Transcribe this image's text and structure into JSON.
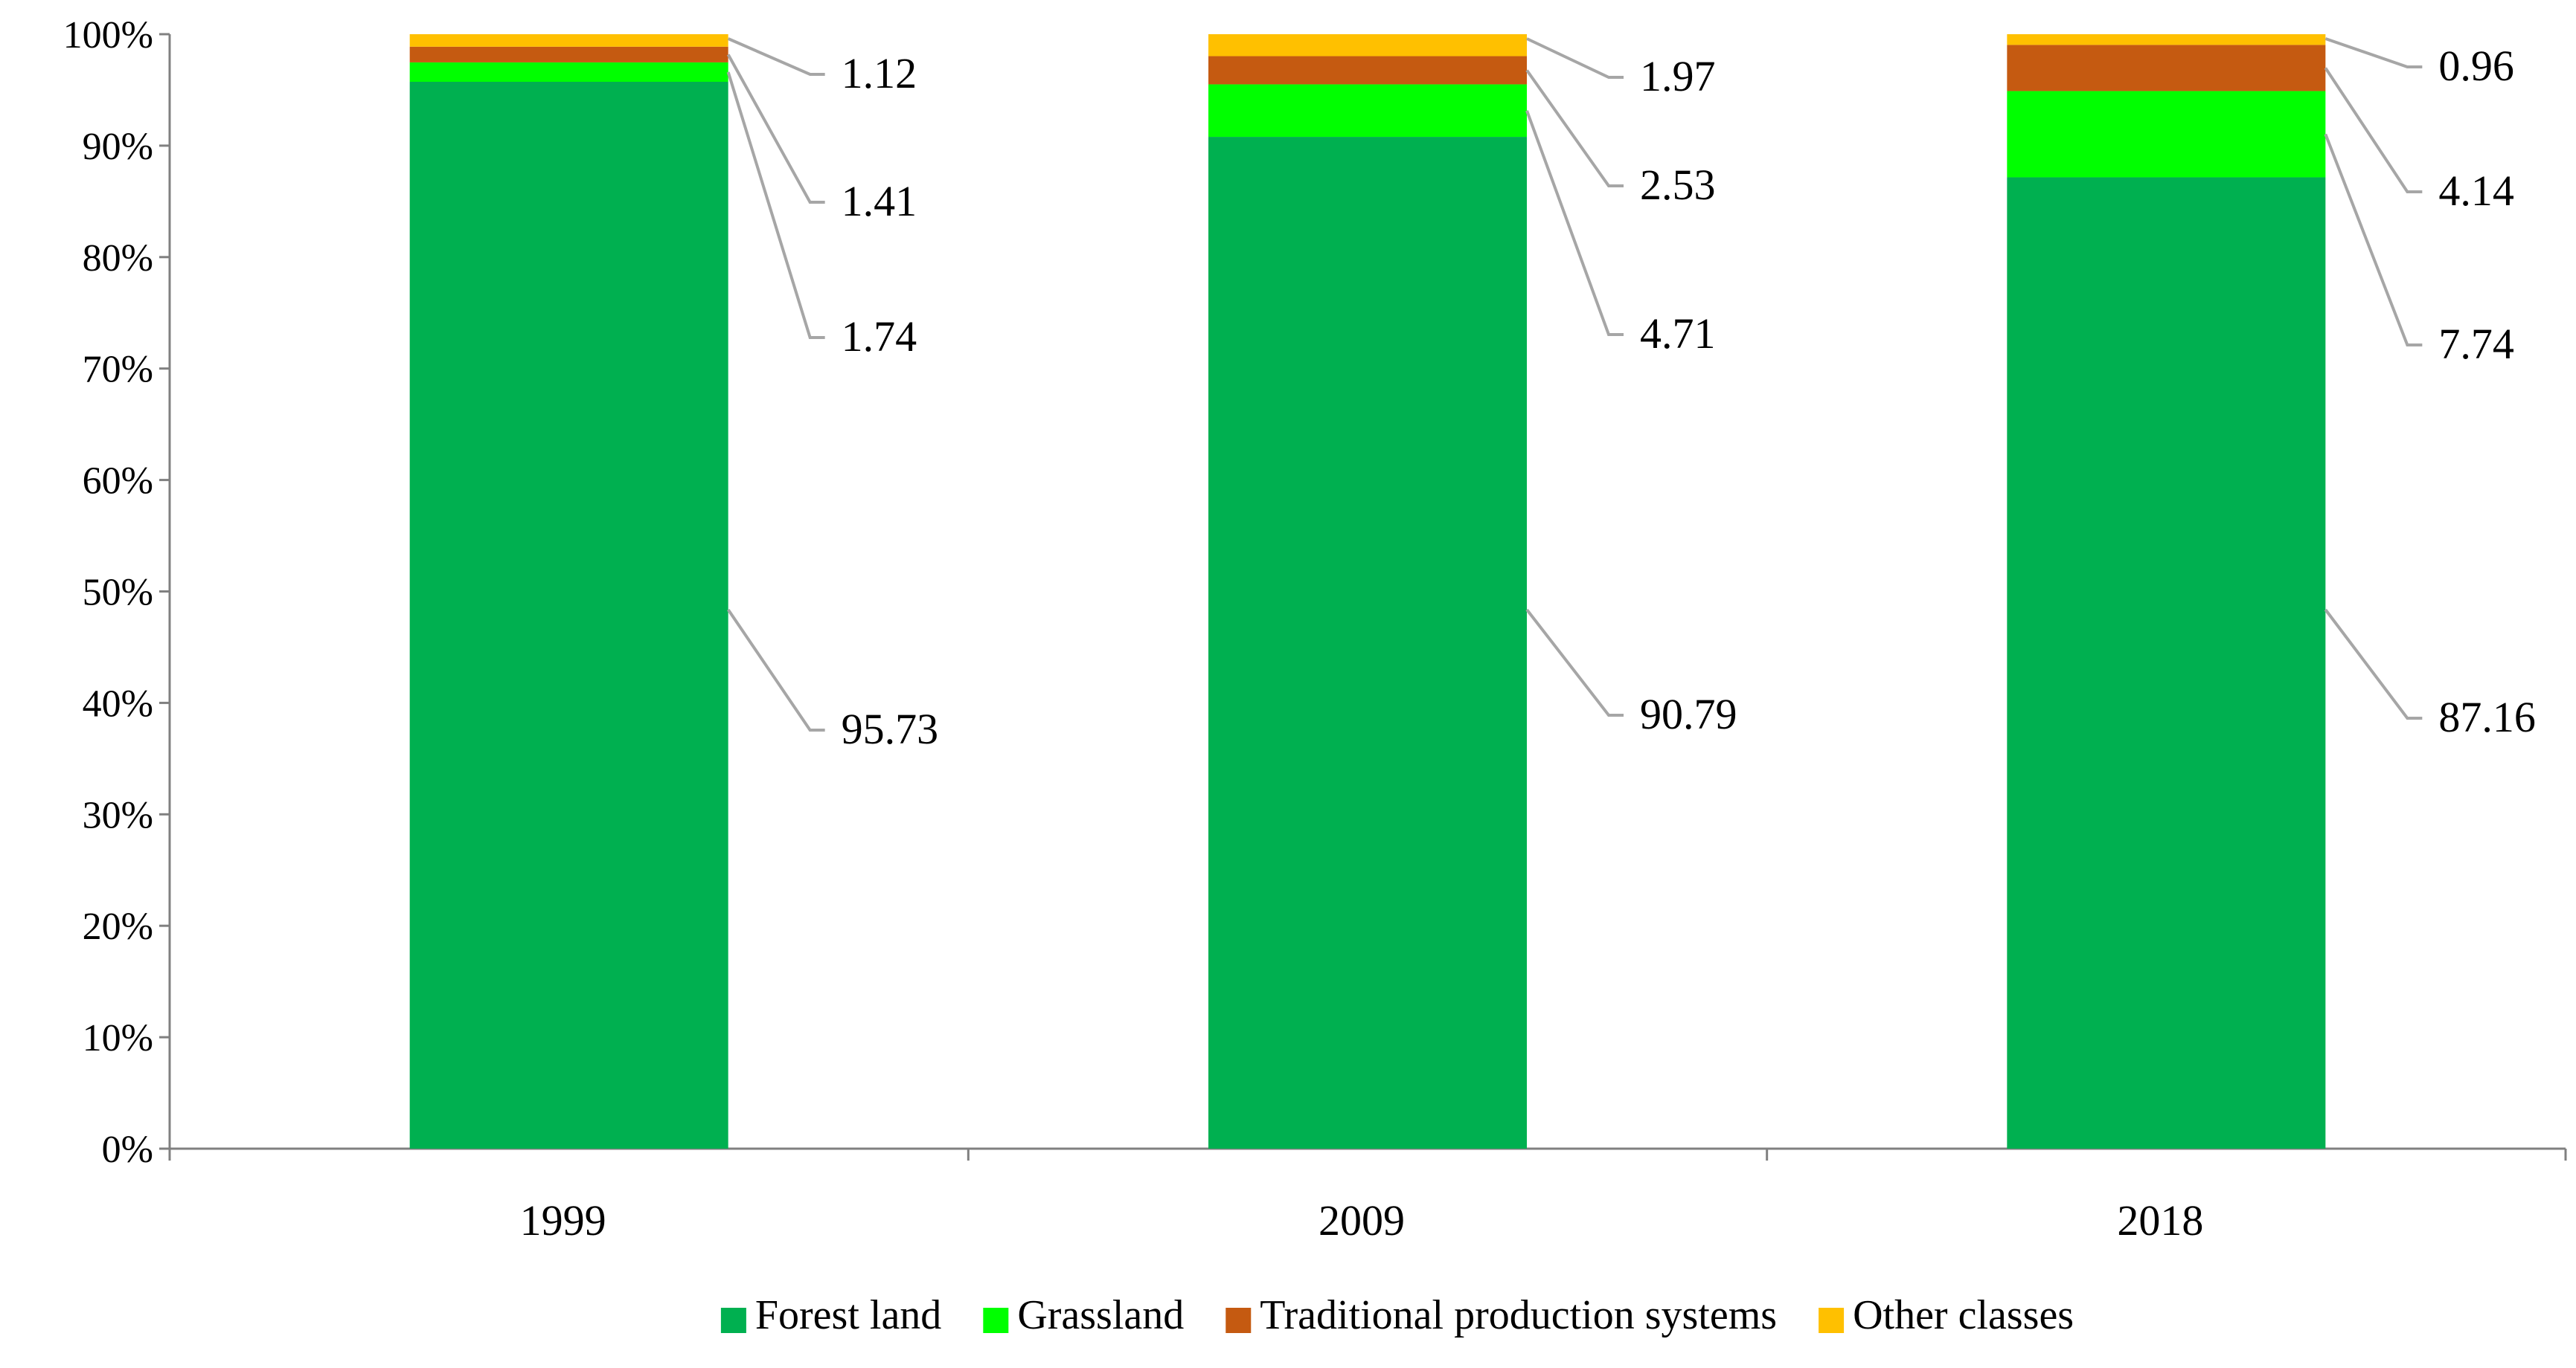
{
  "chart_data": {
    "type": "bar",
    "stacked": true,
    "percent_stacked": true,
    "categories": [
      "1999",
      "2009",
      "2018"
    ],
    "series": [
      {
        "name": "Forest land",
        "color": "#00b050",
        "values": [
          95.73,
          90.79,
          87.16
        ],
        "labels": [
          "95.73",
          "90.79",
          "87.16"
        ]
      },
      {
        "name": "Grassland",
        "color": "#00ff00",
        "values": [
          1.74,
          4.71,
          7.74
        ],
        "labels": [
          "1.74",
          "4.71",
          "7.74"
        ]
      },
      {
        "name": "Traditional production systems",
        "color": "#c55a11",
        "values": [
          1.41,
          2.53,
          4.14
        ],
        "labels": [
          "1.41",
          "2.53",
          "4.14"
        ]
      },
      {
        "name": "Other classes",
        "color": "#ffc000",
        "values": [
          1.12,
          1.97,
          0.96
        ],
        "labels": [
          "1.12",
          "1.97",
          "0.96"
        ]
      }
    ],
    "y_ticks": [
      "0%",
      "10%",
      "20%",
      "30%",
      "40%",
      "50%",
      "60%",
      "70%",
      "80%",
      "90%",
      "100%"
    ],
    "ylim": [
      0,
      100
    ],
    "title": "",
    "xlabel": "",
    "ylabel": "",
    "grid": false,
    "legend_position": "bottom"
  }
}
